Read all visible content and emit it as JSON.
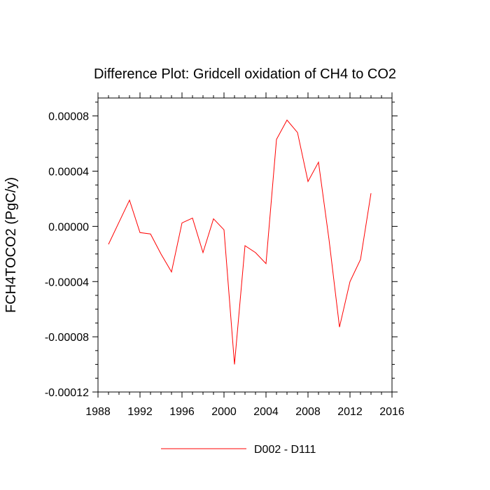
{
  "chart_data": {
    "type": "line",
    "title": "Difference Plot: Gridcell oxidation of CH4 to CO2",
    "xlabel": "",
    "ylabel": "FCH4TOCO2  (PgC/y)",
    "xlim": [
      1988,
      2016
    ],
    "ylim": [
      -0.00012,
      9.3e-05
    ],
    "x_ticks": [
      1988,
      1992,
      1996,
      2000,
      2004,
      2008,
      2012,
      2016
    ],
    "x_tick_labels": [
      "1988",
      "1992",
      "1996",
      "2000",
      "2004",
      "2008",
      "2012",
      "2016"
    ],
    "y_ticks": [
      -0.00012,
      -8e-05,
      -4e-05,
      0.0,
      4e-05,
      8e-05
    ],
    "y_tick_labels": [
      "-0.00012",
      "-0.00008",
      "-0.00004",
      "0.00000",
      "0.00004",
      "0.00008"
    ],
    "series": [
      {
        "name": "D002 - D111",
        "color": "#ff0000",
        "x": [
          1989,
          1990,
          1991,
          1992,
          1993,
          1994,
          1995,
          1996,
          1997,
          1998,
          1999,
          2000,
          2001,
          2002,
          2003,
          2004,
          2005,
          2006,
          2007,
          2008,
          2009,
          2010,
          2011,
          2012,
          2013,
          2014
        ],
        "y": [
          -1.3e-05,
          3e-06,
          1.9e-05,
          -4.5e-06,
          -5.5e-06,
          -2e-05,
          -3.3e-05,
          2.5e-06,
          6e-06,
          -1.9e-05,
          5.5e-06,
          -2.5e-06,
          -0.0001,
          -1.4e-05,
          -1.9e-05,
          -2.7e-05,
          6.3e-05,
          7.7e-05,
          6.8e-05,
          3.25e-05,
          4.65e-05,
          -9.5e-06,
          -7.3e-05,
          -4e-05,
          -2.4e-05,
          2.4e-05
        ]
      }
    ],
    "legend": {
      "position": "bottom-center",
      "entries": [
        "D002 - D111"
      ]
    }
  }
}
